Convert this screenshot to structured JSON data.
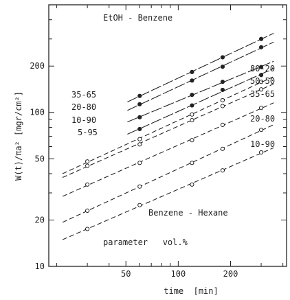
{
  "chart_data": {
    "type": "scatter",
    "xlabel": "time  [min]",
    "ylabel": "W(t)/πa² [mgr/cm²]",
    "x_scale": "log",
    "y_scale": "log",
    "xlim": [
      18,
      420
    ],
    "ylim": [
      10,
      500
    ],
    "x_ticks": [
      50,
      100,
      200
    ],
    "y_ticks": [
      10,
      20,
      50,
      100,
      200
    ],
    "grid": false,
    "annotations": {
      "group_top": "EtOH - Benzene",
      "group_bottom": "Benzene - Hexane",
      "parameter": "parameter   vol.%"
    },
    "series": [
      {
        "name": "35-65",
        "group": "EtOH - Benzene",
        "marker": "filled",
        "line": "solid",
        "x": [
          60,
          120,
          180,
          300
        ],
        "y": [
          128,
          183,
          228,
          300
        ]
      },
      {
        "name": "20-80",
        "group": "EtOH - Benzene",
        "marker": "filled",
        "line": "solid",
        "x": [
          60,
          120,
          180,
          300
        ],
        "y": [
          113,
          161,
          198,
          265
        ]
      },
      {
        "name": "10-90",
        "group": "EtOH - Benzene",
        "marker": "filled",
        "line": "solid",
        "x": [
          60,
          120,
          180,
          300
        ],
        "y": [
          93,
          130,
          158,
          197
        ]
      },
      {
        "name": "5-95",
        "group": "EtOH - Benzene",
        "marker": "filled",
        "line": "solid",
        "x": [
          60,
          120,
          180,
          300
        ],
        "y": [
          78,
          111,
          140,
          175
        ]
      },
      {
        "name": "80-20",
        "group": "Benzene - Hexane",
        "marker": "open",
        "line": "dashed",
        "x": [
          30,
          60,
          120,
          180,
          300
        ],
        "y": [
          48,
          67,
          97,
          120,
          158
        ]
      },
      {
        "name": "50-50",
        "group": "Benzene - Hexane",
        "marker": "open",
        "line": "dashed",
        "x": [
          30,
          60,
          120,
          180,
          300
        ],
        "y": [
          45,
          62,
          89,
          110,
          141
        ]
      },
      {
        "name": "35-65",
        "group": "Benzene - Hexane",
        "marker": "open",
        "line": "dashed",
        "x": [
          30,
          60,
          120,
          180,
          300
        ],
        "y": [
          34,
          47,
          66,
          83,
          107
        ]
      },
      {
        "name": "20-80",
        "group": "Benzene - Hexane",
        "marker": "open",
        "line": "dashed",
        "x": [
          30,
          60,
          120,
          180,
          300
        ],
        "y": [
          23,
          33,
          47,
          58,
          77
        ]
      },
      {
        "name": "10-90",
        "group": "Benzene - Hexane",
        "marker": "open",
        "line": "dashed",
        "x": [
          30,
          60,
          120,
          180,
          300
        ],
        "y": [
          17.5,
          25,
          34,
          42,
          55
        ]
      }
    ]
  }
}
